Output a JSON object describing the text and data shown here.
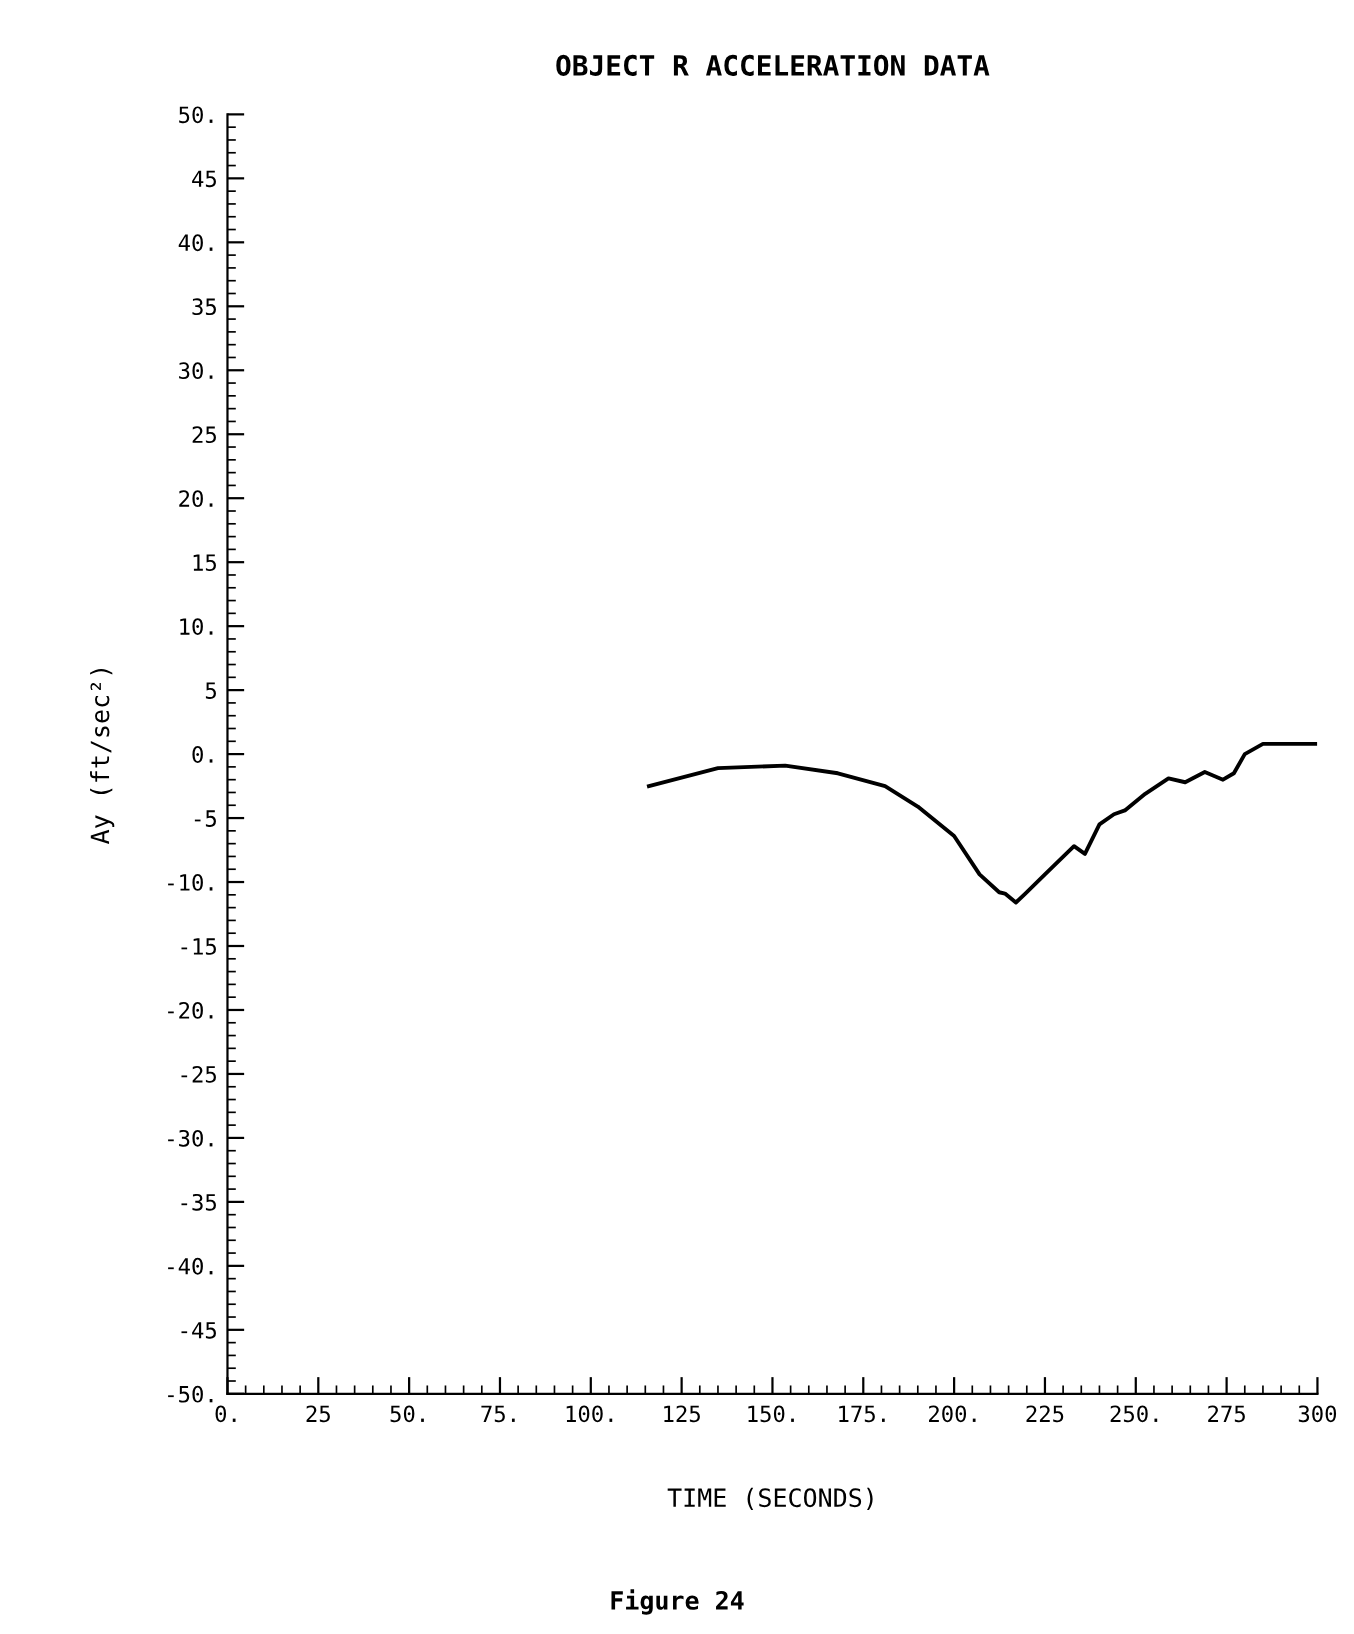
{
  "chart_data": {
    "type": "line",
    "title": "OBJECT R ACCELERATION DATA",
    "xlabel": "TIME (SECONDS)",
    "ylabel": "Ay (ft/sec²)",
    "annotations": [
      "Figure 24"
    ],
    "series": [
      {
        "color": "#000000",
        "x": [
          116,
          135,
          153.5,
          168,
          181,
          190,
          200,
          207,
          212.4,
          214,
          217,
          219.6,
          225,
          233,
          236,
          240,
          244,
          247,
          252.6,
          259,
          263.6,
          269,
          274,
          277,
          280,
          285,
          299.4
        ],
        "values": [
          -2.5,
          -1.1,
          -0.9,
          -1.5,
          -2.5,
          -4.1,
          -6.4,
          -9.4,
          -10.8,
          -10.9,
          -11.6,
          -10.9,
          -9.4,
          -7.2,
          -7.8,
          -5.5,
          -4.7,
          -4.4,
          -3.1,
          -1.9,
          -2.2,
          -1.4,
          -2.0,
          -1.5,
          0,
          0.8,
          0.8
        ]
      }
    ],
    "xlim": [
      0,
      300
    ],
    "xticks": [
      {
        "value": 0,
        "label": "0."
      },
      {
        "value": 25,
        "label": "25"
      },
      {
        "value": 50,
        "label": "50."
      },
      {
        "value": 75,
        "label": "75."
      },
      {
        "value": 100,
        "label": "100."
      },
      {
        "value": 125,
        "label": "125"
      },
      {
        "value": 150,
        "label": "150."
      },
      {
        "value": 175,
        "label": "175."
      },
      {
        "value": 200,
        "label": "200."
      },
      {
        "value": 225,
        "label": "225"
      },
      {
        "value": 250,
        "label": "250."
      },
      {
        "value": 275,
        "label": "275"
      },
      {
        "value": 300,
        "label": "300"
      }
    ],
    "ylim": [
      -50,
      50
    ],
    "yticks": [
      {
        "value": 50,
        "label": "50."
      },
      {
        "value": 45,
        "label": "45"
      },
      {
        "value": 40,
        "label": "40."
      },
      {
        "value": 35,
        "label": "35"
      },
      {
        "value": 30,
        "label": "30."
      },
      {
        "value": 25,
        "label": "25"
      },
      {
        "value": 20,
        "label": "20."
      },
      {
        "value": 15,
        "label": "15"
      },
      {
        "value": 10,
        "label": "10."
      },
      {
        "value": 5,
        "label": "5"
      },
      {
        "value": 0,
        "label": "0."
      },
      {
        "value": -5,
        "label": "-5"
      },
      {
        "value": -10,
        "label": "-10."
      },
      {
        "value": -15,
        "label": "-15"
      },
      {
        "value": -20,
        "label": "-20."
      },
      {
        "value": -25,
        "label": "-25"
      },
      {
        "value": -30,
        "label": "-30."
      },
      {
        "value": -35,
        "label": "-35"
      },
      {
        "value": -40,
        "label": "-40."
      },
      {
        "value": -45,
        "label": "-45"
      },
      {
        "value": -50,
        "label": "-50."
      }
    ],
    "grid": false,
    "legend": false,
    "marker": "none",
    "line_style": "solid"
  }
}
